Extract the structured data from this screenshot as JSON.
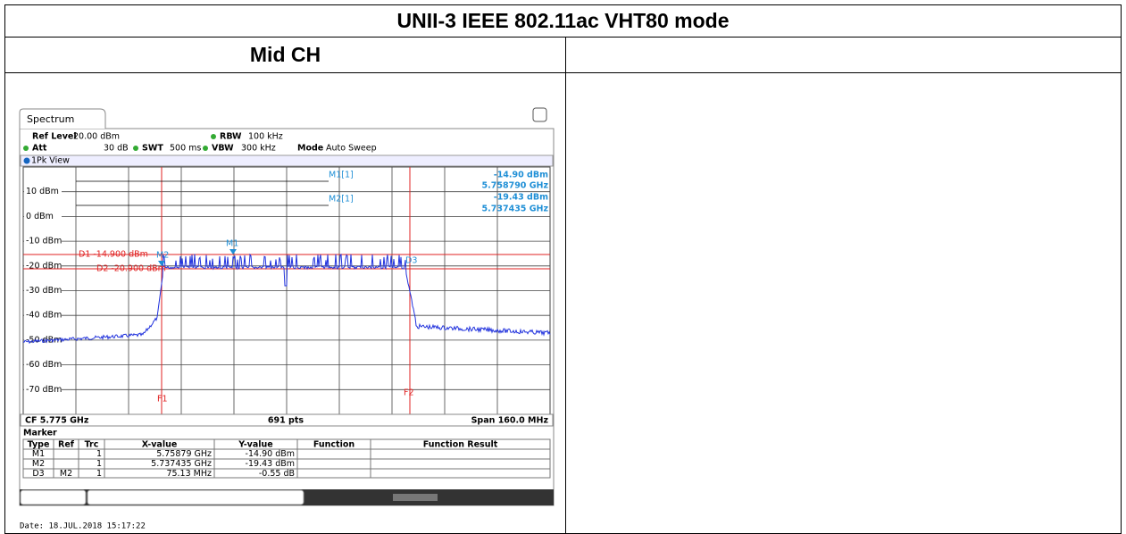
{
  "header": {
    "title": "UNII-3 IEEE 802.11ac VHT80 mode",
    "column": "Mid CH"
  },
  "analyzer": {
    "tab": "Spectrum",
    "settings": {
      "ref_level_label": "Ref Level",
      "ref_level": "20.00 dBm",
      "rbw_label": "RBW",
      "rbw": "100 kHz",
      "att_label": "Att",
      "att": "30 dB",
      "swt_label": "SWT",
      "swt": "500 ms",
      "vbw_label": "VBW",
      "vbw": "300 kHz",
      "mode_label": "Mode",
      "mode": "Auto Sweep"
    },
    "view": "1Pk View",
    "y_labels": [
      "10 dBm",
      "0 dBm",
      "-10 dBm",
      "-20 dBm",
      "-30 dBm",
      "-40 dBm",
      "-50 dBm",
      "-60 dBm",
      "-70 dBm"
    ],
    "readout": [
      {
        "name": "M1[1]",
        "level": "-14.90 dBm",
        "freq": "5.758790 GHz"
      },
      {
        "name": "M2[1]",
        "level": "-19.43 dBm",
        "freq": "5.737435 GHz"
      }
    ],
    "lines": {
      "d1": "D1 -14.900 dBm",
      "d2": "D2 -20.900 dBm",
      "f1": "F1",
      "f2": "F2"
    },
    "markers": {
      "m1": "M1",
      "m2": "M2",
      "d3": "D3"
    },
    "footer": {
      "cf": "CF 5.775 GHz",
      "pts": "691 pts",
      "span": "Span 160.0 MHz"
    },
    "marker_table": {
      "title": "Marker",
      "headers": [
        "Type",
        "Ref",
        "Trc",
        "X-value",
        "Y-value",
        "Function",
        "Function Result"
      ],
      "rows": [
        {
          "type": "M1",
          "trc": "1",
          "x": "5.75879 GHz",
          "y": "-14.90 dBm"
        },
        {
          "type": "M2",
          "trc": "1",
          "x": "5.737435 GHz",
          "y": "-19.43 dBm"
        },
        {
          "type": "D3",
          "ref": "M2",
          "trc": "1",
          "x": "75.13 MHz",
          "y": "-0.55 dB"
        }
      ]
    },
    "date": "Date: 18.JUL.2018 15:17:22"
  }
}
